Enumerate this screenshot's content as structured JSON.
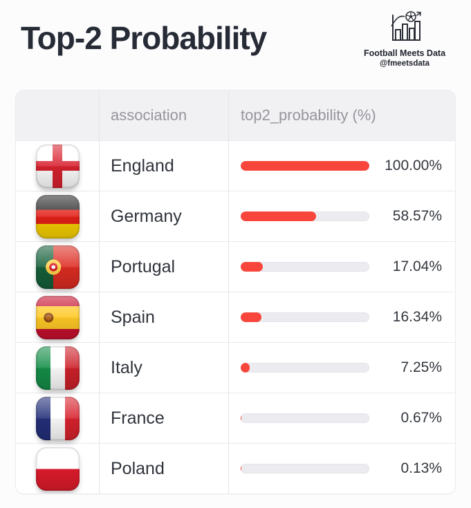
{
  "header": {
    "title": "Top-2 Probability",
    "brand": {
      "name": "Football Meets Data",
      "handle": "@fmeetsdata"
    }
  },
  "table": {
    "columns": [
      "",
      "association",
      "top2_probability (%)"
    ],
    "rows": [
      {
        "flag": "england",
        "association": "England",
        "probability": 100.0,
        "display": "100.00%"
      },
      {
        "flag": "germany",
        "association": "Germany",
        "probability": 58.57,
        "display": "58.57%"
      },
      {
        "flag": "portugal",
        "association": "Portugal",
        "probability": 17.04,
        "display": "17.04%"
      },
      {
        "flag": "spain",
        "association": "Spain",
        "probability": 16.34,
        "display": "16.34%"
      },
      {
        "flag": "italy",
        "association": "Italy",
        "probability": 7.25,
        "display": "7.25%"
      },
      {
        "flag": "france",
        "association": "France",
        "probability": 0.67,
        "display": "0.67%"
      },
      {
        "flag": "poland",
        "association": "Poland",
        "probability": 0.13,
        "display": "0.13%"
      }
    ]
  },
  "chart_data": {
    "type": "bar",
    "orientation": "horizontal",
    "title": "Top-2 Probability",
    "categories": [
      "England",
      "Germany",
      "Portugal",
      "Spain",
      "Italy",
      "France",
      "Poland"
    ],
    "values": [
      100.0,
      58.57,
      17.04,
      16.34,
      7.25,
      0.67,
      0.13
    ],
    "value_labels": [
      "100.00%",
      "58.57%",
      "17.04%",
      "16.34%",
      "7.25%",
      "0.67%",
      "0.13%"
    ],
    "xlabel": "top2_probability (%)",
    "xlim": [
      0,
      100
    ],
    "legend": false,
    "grid": false
  },
  "colors": {
    "bar_fill": "#f8463c",
    "bar_track": "#ebebf0",
    "title_text": "#262b36",
    "header_text": "#95959c",
    "row_text": "#2f333b",
    "header_bg": "#f1f1f4"
  }
}
